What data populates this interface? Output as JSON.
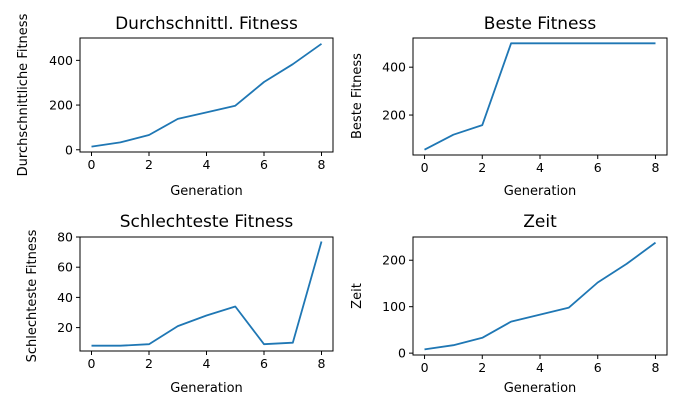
{
  "chart_data": [
    {
      "type": "line",
      "title": "Durchschnittl. Fitness",
      "xlabel": "Generation",
      "ylabel": "Durchschnittliche Fitness",
      "x": [
        0,
        1,
        2,
        3,
        4,
        5,
        6,
        7,
        8
      ],
      "values": [
        14,
        33,
        66,
        138,
        167,
        197,
        303,
        383,
        474
      ],
      "xticks": [
        "0",
        "2",
        "4",
        "6",
        "8"
      ],
      "yticks": [
        "0",
        "200",
        "400"
      ],
      "xlim": [
        -0.4,
        8.4
      ],
      "ylim": [
        -10,
        500
      ],
      "color": "#1f77b4"
    },
    {
      "type": "line",
      "title": "Beste Fitness",
      "xlabel": "Generation",
      "ylabel": "Beste Fitness",
      "x": [
        0,
        1,
        2,
        3,
        4,
        5,
        6,
        7,
        8
      ],
      "values": [
        55,
        118,
        158,
        500,
        500,
        500,
        500,
        500,
        500
      ],
      "xticks": [
        "0",
        "2",
        "4",
        "6",
        "8"
      ],
      "yticks": [
        "200",
        "400"
      ],
      "xlim": [
        -0.4,
        8.4
      ],
      "ylim": [
        33,
        522
      ],
      "color": "#1f77b4"
    },
    {
      "type": "line",
      "title": "Schlechteste Fitness",
      "xlabel": "Generation",
      "ylabel": "Schlechteste Fitness",
      "x": [
        0,
        1,
        2,
        3,
        4,
        5,
        6,
        7,
        8
      ],
      "values": [
        8,
        8,
        9,
        21,
        28,
        34,
        9,
        10,
        77
      ],
      "xticks": [
        "0",
        "2",
        "4",
        "6",
        "8"
      ],
      "yticks": [
        "20",
        "40",
        "60",
        "80"
      ],
      "xlim": [
        -0.4,
        8.4
      ],
      "ylim": [
        4.5,
        80
      ],
      "color": "#1f77b4"
    },
    {
      "type": "line",
      "title": "Zeit",
      "xlabel": "Generation",
      "ylabel": "Zeit",
      "x": [
        0,
        1,
        2,
        3,
        4,
        5,
        6,
        7,
        8
      ],
      "values": [
        8,
        17,
        33,
        68,
        83,
        98,
        152,
        192,
        238
      ],
      "xticks": [
        "0",
        "2",
        "4",
        "6",
        "8"
      ],
      "yticks": [
        "0",
        "100",
        "200"
      ],
      "xlim": [
        -0.4,
        8.4
      ],
      "ylim": [
        -4,
        250
      ],
      "color": "#1f77b4"
    }
  ]
}
